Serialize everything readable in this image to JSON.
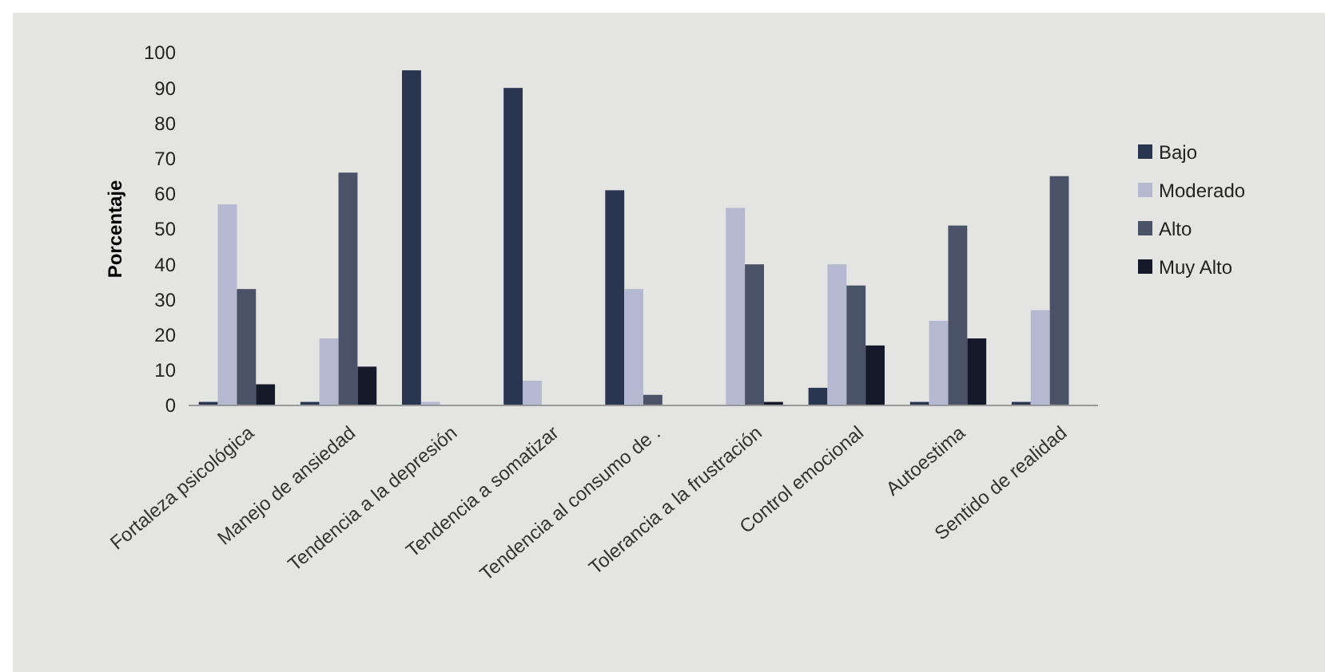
{
  "chart_data": {
    "type": "bar",
    "ylabel": "Porcentaje",
    "categories": [
      "Fortaleza psicológica",
      "Manejo de ansiedad",
      "Tendencia a la depresión",
      "Tendencia a somatizar",
      "Tendencia al consumo de .",
      "Tolerancia a la frustración",
      "Control emocional",
      "Autoestima",
      "Sentido de realidad"
    ],
    "series": [
      {
        "name": "Bajo",
        "color": "#2a3550",
        "values": [
          1,
          1,
          95,
          90,
          61,
          0,
          5,
          1,
          1
        ]
      },
      {
        "name": "Moderado",
        "color": "#b4b8d0",
        "values": [
          57,
          19,
          1,
          7,
          33,
          56,
          40,
          24,
          27
        ]
      },
      {
        "name": "Alto",
        "color": "#4a5268",
        "values": [
          33,
          66,
          0,
          0,
          3,
          40,
          34,
          51,
          65
        ]
      },
      {
        "name": "Muy Alto",
        "color": "#141a2a",
        "values": [
          6,
          11,
          0,
          0,
          0,
          1,
          17,
          19,
          0
        ]
      }
    ],
    "ylim": [
      0,
      100
    ],
    "yticks": [
      0,
      10,
      20,
      30,
      40,
      50,
      60,
      70,
      80,
      90,
      100
    ],
    "legend": "right"
  }
}
